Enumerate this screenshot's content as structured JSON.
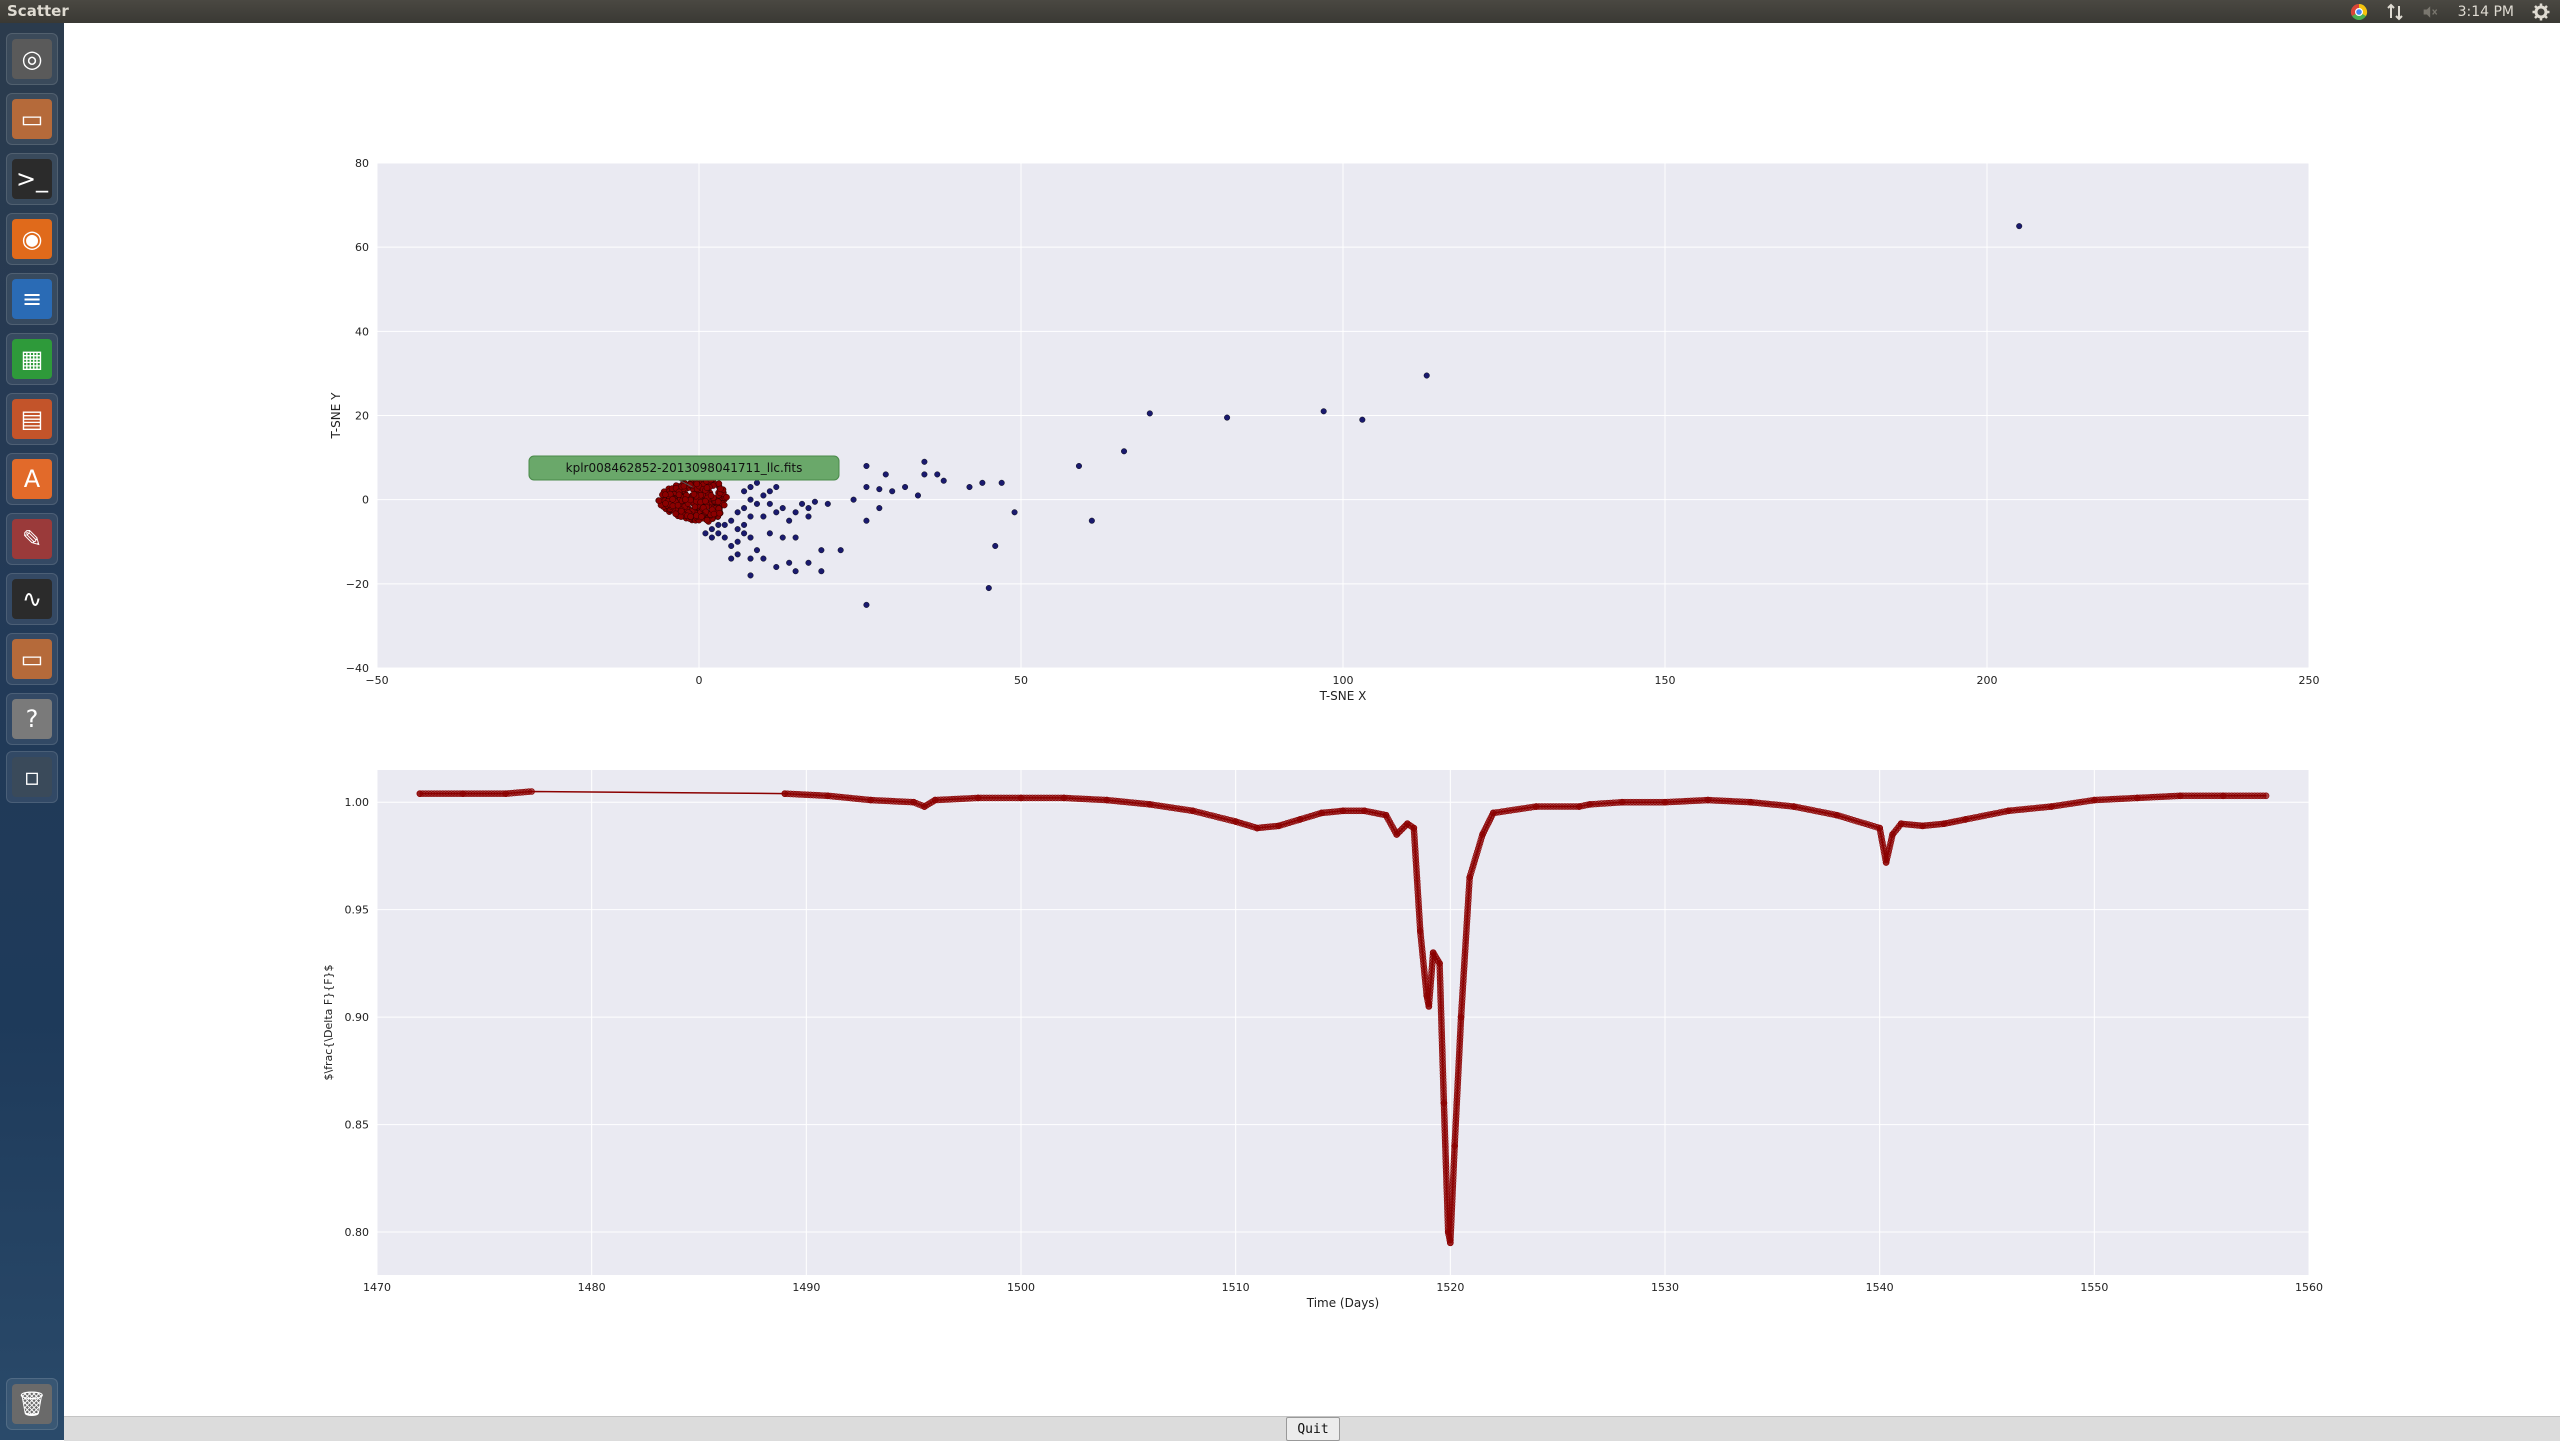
{
  "window": {
    "title": "Scatter"
  },
  "tray": {
    "time": "3:14 PM",
    "icons": [
      "chrome-icon",
      "network-icon",
      "volume-muted-icon",
      "gear-icon"
    ]
  },
  "launcher": [
    {
      "name": "dash-home-icon",
      "color": "#5a5a5a"
    },
    {
      "name": "files-icon",
      "color": "#b56a3a"
    },
    {
      "name": "terminal-icon",
      "color": "#2b2b2b"
    },
    {
      "name": "firefox-icon",
      "color": "#e06a1b"
    },
    {
      "name": "writer-icon",
      "color": "#2a6bb5"
    },
    {
      "name": "calc-icon",
      "color": "#2e9a3a"
    },
    {
      "name": "impress-icon",
      "color": "#c3542a"
    },
    {
      "name": "software-center-icon",
      "color": "#e26a2a"
    },
    {
      "name": "settings-icon",
      "color": "#9a3a3a"
    },
    {
      "name": "system-monitor-icon",
      "color": "#2b2b2b"
    },
    {
      "name": "files-icon-2",
      "color": "#b56a3a"
    },
    {
      "name": "help-icon",
      "color": "#7a7a7a"
    },
    {
      "name": "workspace-icon",
      "color": "#3a4a5a"
    },
    {
      "name": "trash-icon",
      "color": "#6a6a6a"
    }
  ],
  "quit_label": "Quit",
  "tooltip": {
    "text": "kplr008462852-2013098041711_llc.fits"
  },
  "chart_data": [
    {
      "type": "scatter",
      "xlabel": "T-SNE X",
      "ylabel": "T-SNE Y",
      "xlim": [
        -50,
        250
      ],
      "ylim": [
        -40,
        80
      ],
      "xticks": [
        -50,
        0,
        50,
        100,
        150,
        200,
        250
      ],
      "yticks": [
        -40,
        -20,
        0,
        20,
        40,
        60,
        80
      ],
      "grid": true,
      "colors": {
        "points": "#1a1a6e",
        "highlight": "#8b0000"
      },
      "points": [
        [
          205,
          65
        ],
        [
          113,
          29.5
        ],
        [
          97,
          21
        ],
        [
          103,
          19
        ],
        [
          82,
          19.5
        ],
        [
          70,
          20.5
        ],
        [
          66,
          11.5
        ],
        [
          59,
          8
        ],
        [
          61,
          -5
        ],
        [
          49,
          -3
        ],
        [
          45,
          -21
        ],
        [
          46,
          -11
        ],
        [
          47,
          4
        ],
        [
          44,
          4
        ],
        [
          42,
          3
        ],
        [
          37,
          6
        ],
        [
          38,
          4.5
        ],
        [
          35,
          6
        ],
        [
          35,
          9
        ],
        [
          34,
          1
        ],
        [
          32,
          3
        ],
        [
          29,
          6
        ],
        [
          30,
          2
        ],
        [
          28,
          2.5
        ],
        [
          26,
          3
        ],
        [
          26,
          8
        ],
        [
          26,
          -5
        ],
        [
          28,
          -2
        ],
        [
          26,
          -25
        ],
        [
          24,
          0
        ],
        [
          20,
          -1
        ],
        [
          18,
          -0.5
        ],
        [
          17,
          -2
        ],
        [
          16,
          -1
        ],
        [
          17,
          -4
        ],
        [
          15,
          -3
        ],
        [
          14,
          -5
        ],
        [
          15,
          -9
        ],
        [
          13,
          -2
        ],
        [
          12,
          -3
        ],
        [
          12,
          3
        ],
        [
          11,
          -1
        ],
        [
          10,
          -4
        ],
        [
          10,
          1
        ],
        [
          11,
          2
        ],
        [
          9,
          4
        ],
        [
          8,
          3
        ],
        [
          7,
          2
        ],
        [
          8,
          0
        ],
        [
          9,
          -1
        ],
        [
          8,
          -4
        ],
        [
          7,
          -6
        ],
        [
          6,
          -7
        ],
        [
          7,
          -8
        ],
        [
          8,
          -9
        ],
        [
          6,
          -10
        ],
        [
          5,
          -11
        ],
        [
          4,
          -9
        ],
        [
          3,
          -8
        ],
        [
          2,
          -7
        ],
        [
          1,
          -8
        ],
        [
          3,
          -6
        ],
        [
          5,
          -5
        ],
        [
          6,
          -3
        ],
        [
          7,
          -2
        ],
        [
          9,
          -12
        ],
        [
          8,
          -14
        ],
        [
          10,
          -14
        ],
        [
          12,
          -16
        ],
        [
          14,
          -15
        ],
        [
          15,
          -17
        ],
        [
          17,
          -15
        ],
        [
          19,
          -17
        ],
        [
          19,
          -12
        ],
        [
          22,
          -12
        ],
        [
          8,
          -18
        ],
        [
          5,
          -14
        ],
        [
          6,
          -13
        ],
        [
          11,
          -8
        ],
        [
          13,
          -9
        ],
        [
          4,
          -6
        ],
        [
          2,
          -9
        ]
      ],
      "highlight_cluster": {
        "center": [
          -1,
          0
        ],
        "rx": 5,
        "ry": 6,
        "count": 400
      }
    },
    {
      "type": "line",
      "xlabel": "Time (Days)",
      "ylabel": "$\\frac{\\Delta F}{F}$",
      "xlim": [
        1470,
        1560
      ],
      "ylim": [
        0.78,
        1.015
      ],
      "xticks": [
        1470,
        1480,
        1490,
        1500,
        1510,
        1520,
        1530,
        1540,
        1550,
        1560
      ],
      "yticks": [
        0.8,
        0.85,
        0.9,
        0.95,
        1.0
      ],
      "grid": true,
      "colors": {
        "line": "#8b0000"
      },
      "series": [
        {
          "x": [
            1472,
            1474,
            1476,
            1477.2,
            1489,
            1491,
            1493,
            1495,
            1495.5,
            1496,
            1498,
            1500,
            1502,
            1504,
            1506,
            1508,
            1510,
            1511,
            1512,
            1513,
            1514,
            1515,
            1516,
            1517,
            1517.5,
            1518,
            1518.3,
            1518.6,
            1518.9,
            1519.0,
            1519.2,
            1519.5,
            1519.7,
            1519.9,
            1520.0,
            1520.2,
            1520.5,
            1520.9,
            1521.5,
            1522,
            1524,
            1526,
            1526.5,
            1528,
            1530,
            1532,
            1534,
            1536,
            1538,
            1540,
            1540.3,
            1540.6,
            1541,
            1542,
            1543,
            1544,
            1546,
            1548,
            1550,
            1552,
            1554,
            1556,
            1558
          ],
          "y": [
            1.004,
            1.004,
            1.004,
            1.005,
            1.004,
            1.003,
            1.001,
            1.0,
            0.998,
            1.001,
            1.002,
            1.002,
            1.002,
            1.001,
            0.999,
            0.996,
            0.991,
            0.988,
            0.989,
            0.992,
            0.995,
            0.996,
            0.996,
            0.994,
            0.985,
            0.99,
            0.988,
            0.94,
            0.91,
            0.905,
            0.93,
            0.925,
            0.86,
            0.8,
            0.795,
            0.84,
            0.9,
            0.965,
            0.985,
            0.995,
            0.998,
            0.998,
            0.999,
            1.0,
            1.0,
            1.001,
            1.0,
            0.998,
            0.994,
            0.988,
            0.972,
            0.985,
            0.99,
            0.989,
            0.99,
            0.992,
            0.996,
            0.998,
            1.001,
            1.002,
            1.003,
            1.003,
            1.003
          ]
        }
      ]
    }
  ]
}
